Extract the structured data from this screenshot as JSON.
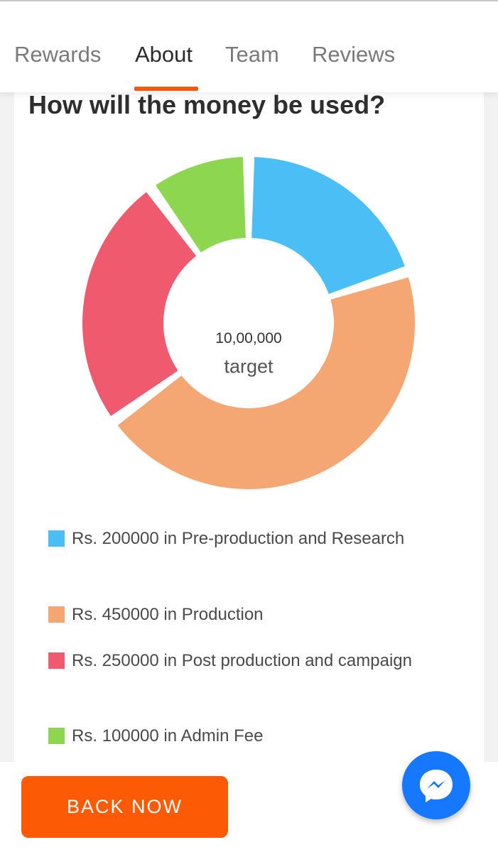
{
  "tabs": [
    {
      "label": "Rewards",
      "active": false
    },
    {
      "label": "About",
      "active": true
    },
    {
      "label": "Team",
      "active": false
    },
    {
      "label": "Reviews",
      "active": false
    }
  ],
  "section_title": "How will the money be used?",
  "chart_center": {
    "amount": "10,00,000",
    "label": "target"
  },
  "chart_data": {
    "type": "pie",
    "title": "How will the money be used?",
    "center_text": "10,00,000 target",
    "total": 1000000,
    "categories": [
      "Pre-production and Research",
      "Production",
      "Post production and campaign",
      "Admin Fee"
    ],
    "values": [
      200000,
      450000,
      250000,
      100000
    ],
    "colors": [
      "#4bbff5",
      "#f5a773",
      "#f05a6e",
      "#8dd64f"
    ]
  },
  "legend": [
    {
      "text": "Rs. 200000 in Pre-production and Research",
      "color": "#4bbff5"
    },
    {
      "text": "Rs. 450000 in Production",
      "color": "#f5a773"
    },
    {
      "text": "Rs. 250000 in Post production and campaign",
      "color": "#f05a6e"
    },
    {
      "text": "Rs. 100000 in Admin Fee",
      "color": "#8dd64f"
    }
  ],
  "footer": {
    "back_label": "BACK NOW"
  },
  "icons": {
    "messenger": "messenger-icon"
  }
}
